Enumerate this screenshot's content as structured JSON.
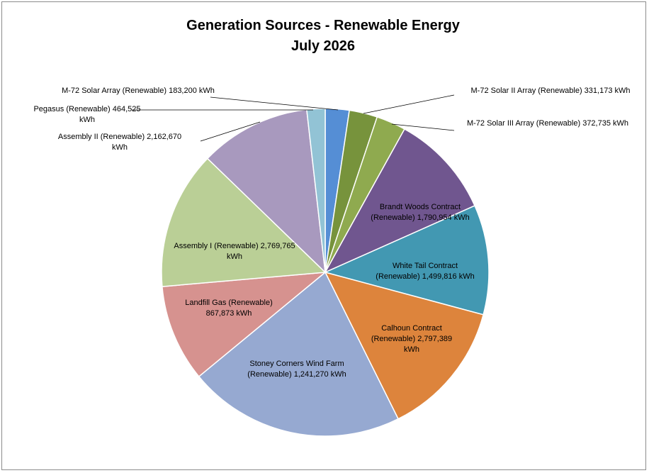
{
  "chart_data": {
    "type": "pie",
    "title": "Generation Sources - Renewable Energy",
    "subtitle": "July 2026",
    "unit": "kWh",
    "slices": [
      {
        "name": "M-72 Solar Array (Renewable)",
        "value": 183200,
        "label": "183,200",
        "color": "#558ed5"
      },
      {
        "name": "M-72 Solar II Array (Renewable)",
        "value": 331173,
        "label": "331,173",
        "color": "#77933c"
      },
      {
        "name": "M-72 Solar III Array (Renewable)",
        "value": 372735,
        "label": "372,735",
        "color": "#8faa4f"
      },
      {
        "name": "Brandt Woods Contract (Renewable)",
        "value": 1790954,
        "label": "1,790,954",
        "color": "#70568f"
      },
      {
        "name": "White Tail Contract (Renewable)",
        "value": 1499816,
        "label": "1,499,816",
        "color": "#4298b2"
      },
      {
        "name": "Calhoun Contract (Renewable)",
        "value": 2797389,
        "label": "2,797,389",
        "color": "#dd843c"
      },
      {
        "name": "Stoney Corners Wind Farm (Renewable)",
        "value": 1241270,
        "label": "1,241,270",
        "color": "#96a9d1"
      },
      {
        "name": "Landfill Gas (Renewable)",
        "value": 867873,
        "label": "867,873",
        "color": "#d6928f"
      },
      {
        "name": "Assembly I (Renewable)",
        "value": 2769765,
        "label": "2,769,765",
        "color": "#bacf96"
      },
      {
        "name": "Assembly II (Renewable)",
        "value": 2162670,
        "label": "2,162,670",
        "color": "#a899be"
      },
      {
        "name": "Pegasus (Renewable)",
        "value": 464525,
        "label": "464,525",
        "color": "#92c3d5"
      }
    ],
    "legend": "none",
    "data_labels": "category name, value and unit"
  }
}
